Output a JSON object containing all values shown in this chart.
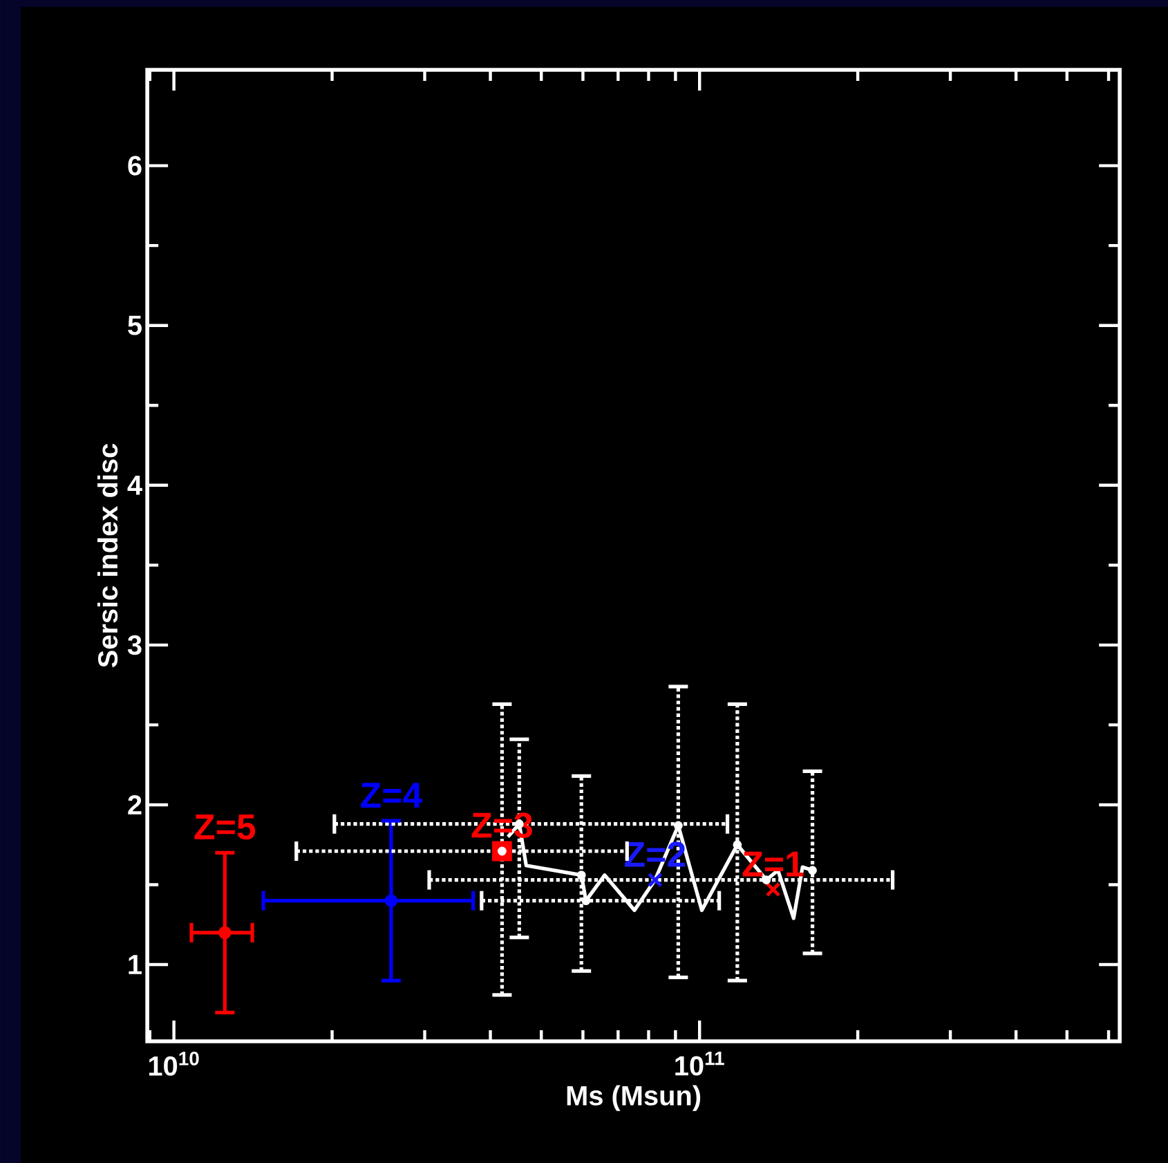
{
  "chart_data": {
    "type": "scatter",
    "xlabel": "Ms (Msun)",
    "ylabel": "Sersic index disc",
    "log": "x",
    "xlim": [
      8900000000.0,
      630000000000.0
    ],
    "ylim": [
      0.52,
      6.6
    ],
    "xticks": [
      {
        "value": 10000000000.0,
        "label": "10$^{10}$"
      },
      {
        "value": 100000000000.0,
        "label": "10$^{11}$"
      }
    ],
    "yticks": [
      1,
      2,
      3,
      4,
      5,
      6
    ],
    "series": [
      {
        "name": "Z=5",
        "type": "scatter",
        "marker": "circle",
        "color": "#ff0000",
        "x": [
          12500000000.0
        ],
        "values": [
          1.2
        ],
        "errors": [
          [
            0.7,
            1.7
          ]
        ],
        "xerrors": [
          [
            10800000000.0,
            14100000000.0
          ]
        ]
      },
      {
        "name": "Z=4",
        "type": "scatter",
        "marker": "circle",
        "color": "#0000ff",
        "x": [
          25900000000.0
        ],
        "values": [
          1.4
        ],
        "errors": [
          [
            0.9,
            1.9
          ]
        ],
        "xerrors": [
          [
            14800000000.0,
            37100000000.0
          ]
        ]
      },
      {
        "name": "Z=3",
        "type": "scatter",
        "marker": "square",
        "color": "#ff0000",
        "x": [
          42100000000.0
        ],
        "values": [
          1.71
        ]
      },
      {
        "name": "Z=2",
        "type": "scatter",
        "marker": "cross",
        "color": "#1a1aff",
        "x": [
          82300000000.0
        ],
        "values": [
          1.53
        ]
      },
      {
        "name": "Z=1",
        "type": "scatter",
        "marker": "cross",
        "color": "#ff0000",
        "x": [
          138000000000.0
        ],
        "values": [
          1.47
        ]
      },
      {
        "type": "line",
        "marker": "none",
        "color": "#ffffff",
        "x": [
          43200000000.0,
          45400000000.0,
          46800000000.0,
          59600000000.0,
          60800000000.0,
          66000000000.0,
          75200000000.0,
          82300000000.0,
          91100000000.0,
          101000000000.0,
          118000000000.0,
          134000000000.0,
          141000000000.0,
          151000000000.0,
          157000000000.0,
          164000000000.0
        ],
        "values": [
          1.8,
          1.88,
          1.62,
          1.56,
          1.4,
          1.56,
          1.34,
          1.53,
          1.87,
          1.34,
          1.75,
          1.53,
          1.59,
          1.29,
          1.61,
          1.59
        ]
      },
      {
        "type": "scatter",
        "marker": "circle",
        "line_style": "dotted",
        "color": "#ffffff",
        "x": [
          42100000000.0,
          45400000000.0,
          91100000000.0,
          118000000000.0,
          59600000000.0,
          164000000000.0,
          134000000000.0,
          60800000000.0
        ],
        "values": [
          1.71,
          1.88,
          1.87,
          1.75,
          1.56,
          1.59,
          1.53,
          1.4
        ],
        "errors": [
          [
            0.81,
            2.63
          ],
          [
            1.17,
            2.41
          ],
          [
            0.92,
            2.74
          ],
          [
            0.9,
            2.63
          ],
          [
            0.96,
            2.18
          ],
          [
            1.07,
            2.21
          ],
          null,
          null
        ],
        "xerrors": [
          [
            17100000000.0,
            72800000000.0
          ],
          [
            20200000000.0,
            113000000000.0
          ],
          null,
          null,
          null,
          null,
          [
            30600000000.0,
            233000000000.0
          ],
          [
            38500000000.0,
            109000000000.0
          ]
        ]
      }
    ]
  }
}
